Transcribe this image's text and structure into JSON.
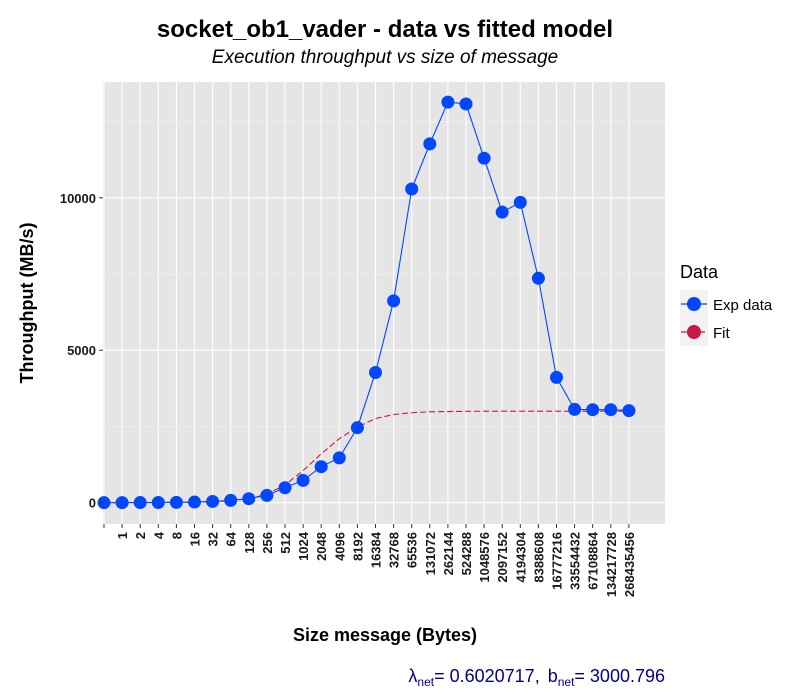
{
  "chart_data": {
    "type": "line",
    "title": "socket_ob1_vader - data vs fitted model",
    "subtitle": "Execution throughput vs size of message",
    "xlabel": "Size message (Bytes)",
    "ylabel": "Throughput (MB/s)",
    "x_tick_labels": [
      "",
      "1",
      "2",
      "4",
      "8",
      "16",
      "32",
      "64",
      "128",
      "256",
      "512",
      "1024",
      "2048",
      "4096",
      "8192",
      "16384",
      "32768",
      "65536",
      "131072",
      "262144",
      "524288",
      "1048576",
      "2097152",
      "4194304",
      "8388608",
      "16777216",
      "33554432",
      "67108864",
      "134217728",
      "268435456"
    ],
    "y_ticks": [
      0,
      5000,
      10000
    ],
    "y_tick_labels": [
      "0",
      "5000",
      "10000"
    ],
    "ylim": [
      -700,
      13800
    ],
    "grid": true,
    "legend": {
      "title": "Data",
      "position": "right",
      "entries": [
        {
          "label": "Exp data",
          "color": "#0047ff"
        },
        {
          "label": "Fit",
          "color": "#c8174a"
        }
      ]
    },
    "series": [
      {
        "name": "Exp data",
        "color": "#0047ff",
        "style": "solid-with-points",
        "values": [
          0,
          2,
          4,
          6,
          10,
          20,
          40,
          75,
          130,
          240,
          490,
          730,
          1180,
          1470,
          2460,
          4270,
          6620,
          10290,
          11770,
          13140,
          13080,
          11300,
          9530,
          9850,
          7360,
          4110,
          3060,
          3050,
          3050,
          3020
        ]
      },
      {
        "name": "Fit",
        "color": "#c8174a",
        "style": "dashed",
        "values": [
          0,
          1,
          2,
          4,
          8,
          15,
          30,
          60,
          130,
          280,
          580,
          1050,
          1600,
          2100,
          2480,
          2760,
          2890,
          2950,
          2980,
          2990,
          2995,
          3000,
          3000,
          3000,
          3000,
          3000,
          3000,
          3000,
          3000,
          3000
        ]
      }
    ],
    "annotation": {
      "lambda_symbol": "λ",
      "lambda_sub": "net",
      "lambda_value": "= 0.6020717,",
      "b_symbol": "b",
      "b_sub": "net",
      "b_value": "= 3000.796"
    }
  }
}
